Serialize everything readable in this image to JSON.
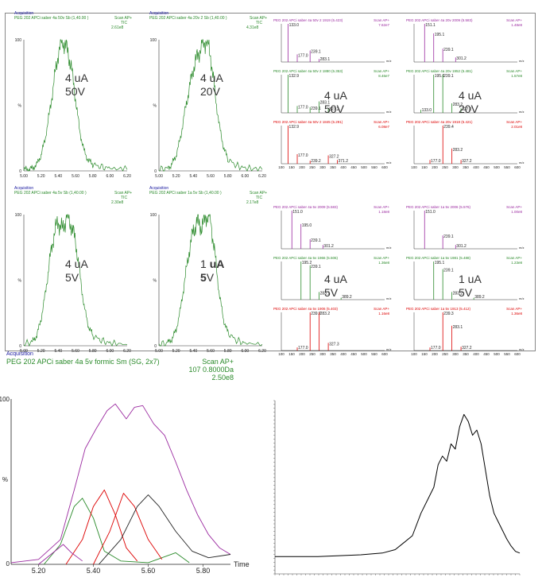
{
  "tic_panels": [
    {
      "acq": "Acquisition",
      "title": "PEG 202 APCi saber 4a 50v Sb (1,40.00 )",
      "scan": "Scan AP+",
      "tic": "TIC",
      "intensity": "2.61e8",
      "ann": "4 uA\n50V",
      "ann_bold": false,
      "data": [
        [
          5.0,
          1
        ],
        [
          5.05,
          1
        ],
        [
          5.1,
          2
        ],
        [
          5.15,
          5
        ],
        [
          5.2,
          12
        ],
        [
          5.25,
          25
        ],
        [
          5.3,
          45
        ],
        [
          5.35,
          68
        ],
        [
          5.4,
          90
        ],
        [
          5.45,
          100
        ],
        [
          5.5,
          93
        ],
        [
          5.55,
          80
        ],
        [
          5.6,
          55
        ],
        [
          5.65,
          30
        ],
        [
          5.7,
          15
        ],
        [
          5.75,
          8
        ],
        [
          5.8,
          5
        ],
        [
          5.9,
          3
        ],
        [
          6.0,
          2
        ],
        [
          6.2,
          1
        ]
      ]
    },
    {
      "acq": "Acquisition",
      "title": "PEG 202 APCi saber 4a 20v 2 Sb (1,40.00 )",
      "scan": "Scan AP+",
      "tic": "TIC",
      "intensity": "4.31e8",
      "ann": "4 uA\n20V",
      "ann_bold": false,
      "data": [
        [
          5.0,
          1
        ],
        [
          5.1,
          2
        ],
        [
          5.15,
          5
        ],
        [
          5.2,
          12
        ],
        [
          5.25,
          25
        ],
        [
          5.3,
          45
        ],
        [
          5.35,
          62
        ],
        [
          5.4,
          78
        ],
        [
          5.45,
          88
        ],
        [
          5.5,
          96
        ],
        [
          5.55,
          100
        ],
        [
          5.6,
          88
        ],
        [
          5.65,
          60
        ],
        [
          5.7,
          35
        ],
        [
          5.75,
          18
        ],
        [
          5.8,
          9
        ],
        [
          5.9,
          4
        ],
        [
          6.0,
          2
        ],
        [
          6.2,
          1
        ]
      ]
    },
    {
      "acq": "Acquisition",
      "title": "PEG 202 APCi saber 4a 5v Sb (1,40.00 )",
      "scan": "Scan AP+",
      "tic": "TIC",
      "intensity": "2.30e8",
      "ann": "4 uA\n5V",
      "ann_bold": false,
      "data": [
        [
          5.0,
          1
        ],
        [
          5.1,
          3
        ],
        [
          5.15,
          8
        ],
        [
          5.2,
          20
        ],
        [
          5.25,
          40
        ],
        [
          5.3,
          65
        ],
        [
          5.35,
          85
        ],
        [
          5.4,
          95
        ],
        [
          5.45,
          88
        ],
        [
          5.5,
          100
        ],
        [
          5.55,
          92
        ],
        [
          5.6,
          80
        ],
        [
          5.65,
          55
        ],
        [
          5.7,
          30
        ],
        [
          5.75,
          15
        ],
        [
          5.8,
          8
        ],
        [
          5.9,
          4
        ],
        [
          6.0,
          2
        ],
        [
          6.2,
          1
        ]
      ]
    },
    {
      "acq": "Acquisition",
      "title": "PEG 202 APCi saber 1a 5v Sb (1,40.00 )",
      "scan": "Scan AP+",
      "tic": "TIC",
      "intensity": "2.17e8",
      "ann_pre": "1 ",
      "ann_b1": "uA",
      "ann_nl": "",
      "ann_b2": "5",
      "ann_post": "V",
      "ann_bold": true,
      "data": [
        [
          5.0,
          1
        ],
        [
          5.1,
          2
        ],
        [
          5.15,
          5
        ],
        [
          5.2,
          12
        ],
        [
          5.25,
          28
        ],
        [
          5.3,
          50
        ],
        [
          5.35,
          72
        ],
        [
          5.4,
          88
        ],
        [
          5.45,
          95
        ],
        [
          5.5,
          90
        ],
        [
          5.55,
          100
        ],
        [
          5.6,
          96
        ],
        [
          5.65,
          70
        ],
        [
          5.7,
          40
        ],
        [
          5.75,
          20
        ],
        [
          5.8,
          10
        ],
        [
          5.9,
          4
        ],
        [
          6.0,
          2
        ],
        [
          6.2,
          1
        ]
      ]
    }
  ],
  "tic_axis": {
    "xlim": [
      5.0,
      6.2
    ],
    "ylim": [
      0,
      100
    ],
    "xticks": [
      "5.00",
      "5.20",
      "5.40",
      "5.60",
      "5.80",
      "6.00",
      "6.20"
    ],
    "yticks": [
      "0",
      "%",
      "100"
    ]
  },
  "ms_blocks": [
    {
      "ann": "4 uA\n50V",
      "spectra": [
        {
          "title": "PEG 202 APCi saber 4a 50v 2 1919 (5.423)",
          "scan": "Scan AP+",
          "int": "7.62e7",
          "color": "#9b2aa0",
          "peaks": [
            [
              133.0,
              100
            ],
            [
              177.0,
              20
            ],
            [
              239.1,
              30
            ],
            [
              283.1,
              8
            ]
          ]
        },
        {
          "title": "PEG 202 APCi saber 4a 50v 2 1880 (5.353)",
          "scan": "Scan AP+",
          "int": "8.46e7",
          "color": "#2a8a2a",
          "peaks": [
            [
              132.9,
              100
            ],
            [
              177.0,
              18
            ],
            [
              239.1,
              15
            ],
            [
              283.1,
              30
            ],
            [
              327.2,
              12
            ]
          ]
        },
        {
          "title": "PEG 202 APCi saber 4a 50v 2 1845 (5.291)",
          "scan": "Scan AP+",
          "int": "6.08e7",
          "color": "#d00",
          "peaks": [
            [
              132.9,
              100
            ],
            [
              177.0,
              25
            ],
            [
              239.2,
              8
            ],
            [
              327.2,
              22
            ],
            [
              371.2,
              10
            ]
          ]
        }
      ]
    },
    {
      "ann": "4 uA\n20V",
      "spectra": [
        {
          "title": "PEG 202 APCi saber 4a 20v 2009 (5.583)",
          "scan": "Scan AP+",
          "int": "1.48e8",
          "color": "#9b2aa0",
          "peaks": [
            [
              151.1,
              100
            ],
            [
              195.1,
              75
            ],
            [
              239.1,
              35
            ],
            [
              301.2,
              12
            ]
          ]
        },
        {
          "title": "PEG 202 APCi saber 4a 20v 1952 (5.481)",
          "scan": "Scan AP+",
          "int": "1.57e8",
          "color": "#2a8a2a",
          "peaks": [
            [
              133.0,
              8
            ],
            [
              195.1,
              100
            ],
            [
              239.1,
              100
            ],
            [
              283.2,
              25
            ],
            [
              327.2,
              12
            ]
          ]
        },
        {
          "title": "PEG 202 APCi saber 4a 20v 1918 (5.421)",
          "scan": "Scan AP+",
          "int": "2.01e8",
          "color": "#d00",
          "peaks": [
            [
              177.0,
              10
            ],
            [
              239.4,
              100
            ],
            [
              283.2,
              40
            ],
            [
              327.2,
              10
            ]
          ]
        }
      ]
    },
    {
      "ann": "4 uA\n5V",
      "spectra": [
        {
          "title": "PEG 202 APCi saber 4a 5v 2009 (5.583)",
          "scan": "Scan AP+",
          "int": "1.18e8",
          "color": "#9b2aa0",
          "peaks": [
            [
              151.0,
              100
            ],
            [
              195.0,
              65
            ],
            [
              239.1,
              25
            ],
            [
              301.2,
              10
            ]
          ]
        },
        {
          "title": "PEG 202 APCi saber 4a 5v 1966 (5.506)",
          "scan": "Scan AP+",
          "int": "1.36e8",
          "color": "#2a8a2a",
          "peaks": [
            [
              195.2,
              100
            ],
            [
              239.1,
              90
            ],
            [
              283.1,
              20
            ],
            [
              389.2,
              5
            ]
          ]
        },
        {
          "title": "PEG 202 APCi saber 4a 5v 1906 (5.403)",
          "scan": "Scan AP+",
          "int": "1.16e8",
          "color": "#d00",
          "peaks": [
            [
              177.0,
              8
            ],
            [
              239.2,
              100
            ],
            [
              283.2,
              100
            ],
            [
              327.3,
              20
            ]
          ]
        }
      ]
    },
    {
      "ann": "1 uA\n5V",
      "spectra": [
        {
          "title": "PEG 202 APCi saber 1a 5v 2006 (5.576)",
          "scan": "Scan AP+",
          "int": "1.00e8",
          "color": "#9b2aa0",
          "peaks": [
            [
              151.0,
              100
            ],
            [
              239.1,
              35
            ],
            [
              301.2,
              10
            ]
          ]
        },
        {
          "title": "PEG 202 APCi saber 1a 5v 1981 (5.488)",
          "scan": "Scan AP+",
          "int": "1.23e8",
          "color": "#2a8a2a",
          "peaks": [
            [
              195.1,
              100
            ],
            [
              239.1,
              80
            ],
            [
              283.2,
              20
            ],
            [
              389.2,
              5
            ]
          ]
        },
        {
          "title": "PEG 202 APCi saber 1a 5v 1913 (5.412)",
          "scan": "Scan AP+",
          "int": "1.36e8",
          "color": "#d00",
          "peaks": [
            [
              177.0,
              8
            ],
            [
              239.3,
              100
            ],
            [
              283.1,
              65
            ],
            [
              327.2,
              10
            ]
          ]
        }
      ]
    }
  ],
  "ms_axis": {
    "xlim": [
      100,
      600
    ],
    "xticks": [
      "100",
      "150",
      "200",
      "250",
      "300",
      "350",
      "400",
      "450",
      "500",
      "550",
      "600"
    ],
    "xlabel": "m/z"
  },
  "chart_data": [
    {
      "type": "line",
      "title": "PEG 202 APCi saber 4a 5v formic Sm (SG, 2x7)",
      "acq": "Acquisition",
      "scan": "Scan AP+",
      "range": "107 0.8000Da",
      "intensity": "2.50e8",
      "xlabel": "Time",
      "ylabel": "%",
      "xlim": [
        5.1,
        5.9
      ],
      "ylim": [
        0,
        100
      ],
      "xticks": [
        "5.20",
        "5.40",
        "5.60",
        "5.80"
      ],
      "yticks": [
        "0",
        "100"
      ],
      "series": [
        {
          "color": "#9b2aa0",
          "values": [
            [
              5.1,
              1
            ],
            [
              5.2,
              3
            ],
            [
              5.28,
              15
            ],
            [
              5.33,
              45
            ],
            [
              5.37,
              70
            ],
            [
              5.41,
              82
            ],
            [
              5.45,
              93
            ],
            [
              5.48,
              97
            ],
            [
              5.52,
              88
            ],
            [
              5.55,
              95
            ],
            [
              5.58,
              96
            ],
            [
              5.62,
              85
            ],
            [
              5.66,
              78
            ],
            [
              5.7,
              62
            ],
            [
              5.74,
              45
            ],
            [
              5.78,
              30
            ],
            [
              5.82,
              18
            ],
            [
              5.86,
              10
            ],
            [
              5.9,
              6
            ]
          ]
        },
        {
          "color": "#2a8a2a",
          "values": [
            [
              5.22,
              0
            ],
            [
              5.28,
              12
            ],
            [
              5.33,
              35
            ],
            [
              5.36,
              40
            ],
            [
              5.4,
              28
            ],
            [
              5.44,
              8
            ],
            [
              5.5,
              2
            ],
            [
              5.6,
              1
            ],
            [
              5.7,
              7
            ],
            [
              5.75,
              1
            ]
          ]
        },
        {
          "color": "#d00",
          "values": [
            [
              5.3,
              0
            ],
            [
              5.36,
              15
            ],
            [
              5.4,
              35
            ],
            [
              5.44,
              45
            ],
            [
              5.48,
              30
            ],
            [
              5.52,
              10
            ],
            [
              5.56,
              2
            ]
          ]
        },
        {
          "color": "#d00",
          "values": [
            [
              5.4,
              0
            ],
            [
              5.46,
              20
            ],
            [
              5.51,
              43
            ],
            [
              5.55,
              35
            ],
            [
              5.6,
              15
            ],
            [
              5.65,
              3
            ]
          ]
        },
        {
          "color": "#222",
          "values": [
            [
              5.42,
              0
            ],
            [
              5.5,
              15
            ],
            [
              5.56,
              35
            ],
            [
              5.6,
              42
            ],
            [
              5.64,
              35
            ],
            [
              5.7,
              20
            ],
            [
              5.76,
              8
            ],
            [
              5.82,
              4
            ],
            [
              5.9,
              6
            ]
          ]
        },
        {
          "color": "#9b2aa0",
          "values": [
            [
              5.2,
              0
            ],
            [
              5.26,
              8
            ],
            [
              5.29,
              12
            ],
            [
              5.32,
              7
            ],
            [
              5.36,
              2
            ]
          ]
        }
      ]
    },
    {
      "type": "line",
      "series": [
        {
          "color": "#000",
          "values": [
            [
              0,
              10
            ],
            [
              10,
              10
            ],
            [
              20,
              11
            ],
            [
              25,
              12
            ],
            [
              28,
              14
            ],
            [
              30,
              18
            ],
            [
              32,
              22
            ],
            [
              34,
              35
            ],
            [
              36,
              45
            ],
            [
              37,
              50
            ],
            [
              38,
              63
            ],
            [
              39,
              68
            ],
            [
              40,
              65
            ],
            [
              41,
              75
            ],
            [
              42,
              72
            ],
            [
              43,
              85
            ],
            [
              44,
              92
            ],
            [
              45,
              88
            ],
            [
              46,
              80
            ],
            [
              47,
              83
            ],
            [
              48,
              75
            ],
            [
              49,
              60
            ],
            [
              50,
              45
            ],
            [
              51,
              35
            ],
            [
              52,
              30
            ],
            [
              53,
              25
            ],
            [
              54,
              20
            ],
            [
              55,
              16
            ],
            [
              56,
              13
            ],
            [
              57,
              12
            ]
          ]
        }
      ],
      "xlim": [
        0,
        57
      ],
      "ylim": [
        0,
        100
      ]
    }
  ]
}
